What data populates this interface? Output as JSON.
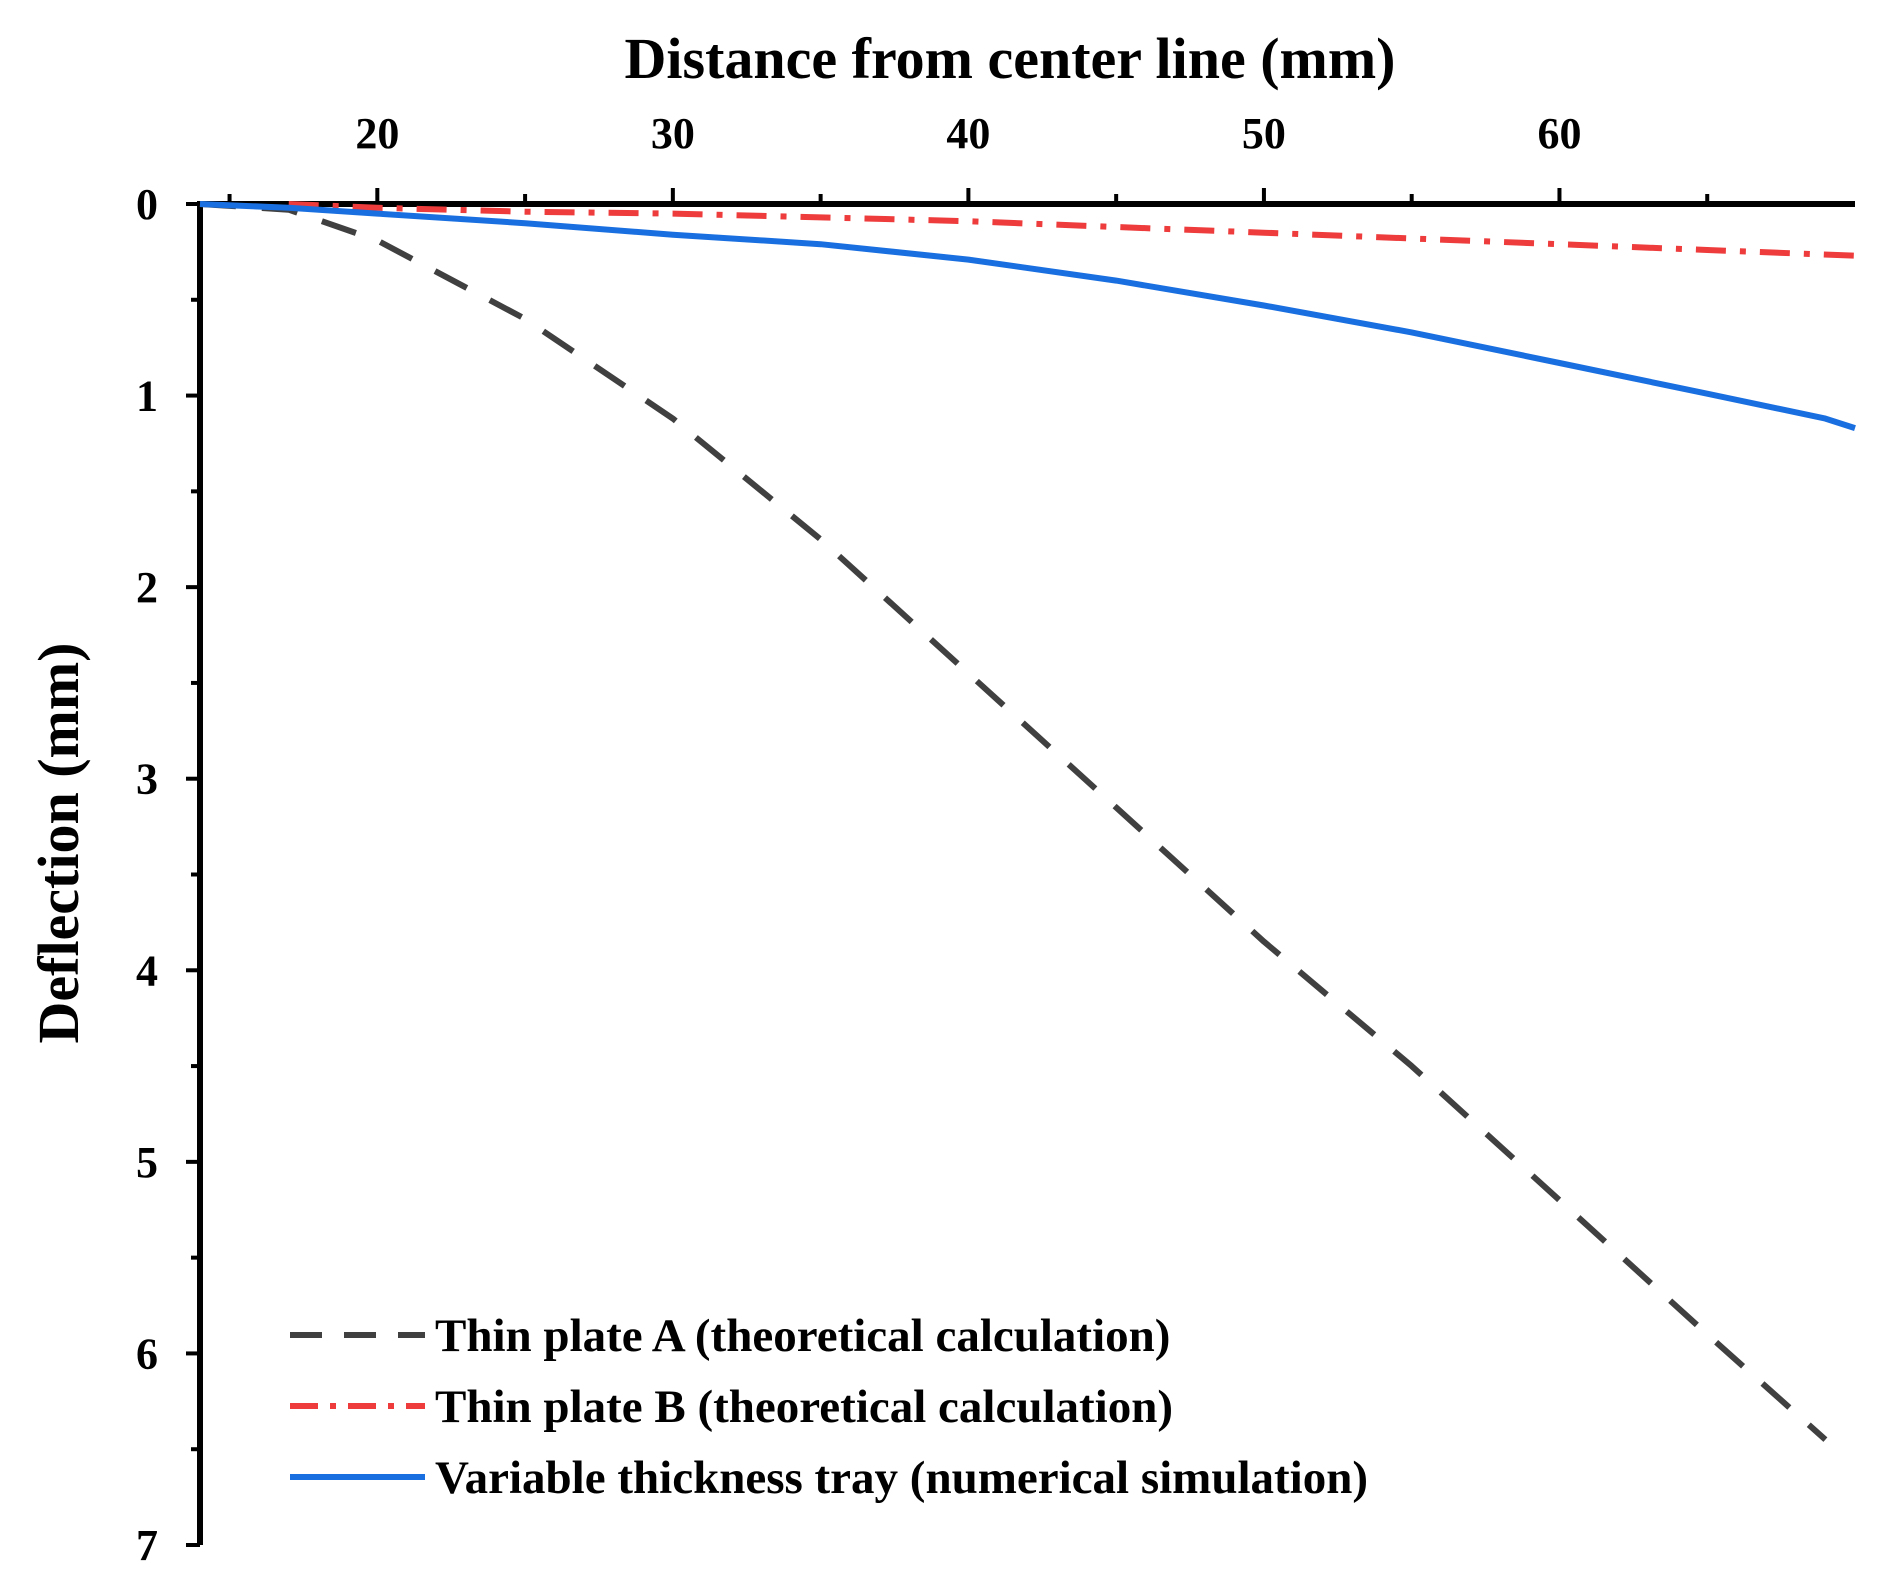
{
  "chart_data": {
    "type": "line",
    "title": "",
    "xlabel": "Distance from center line (mm)",
    "ylabel": "Deflection (mm)",
    "x_axis_position": "top",
    "y_axis_inverted": true,
    "xlim": [
      14,
      70
    ],
    "ylim": [
      0,
      7
    ],
    "x_ticks": [
      20,
      30,
      40,
      50,
      60
    ],
    "x_tick_labels": [
      "20",
      "30",
      "40",
      "50",
      "60"
    ],
    "y_ticks": [
      0,
      1,
      2,
      3,
      4,
      5,
      6,
      7
    ],
    "y_tick_labels": [
      "0",
      "1",
      "2",
      "3",
      "4",
      "5",
      "6",
      "7"
    ],
    "grid": false,
    "legend_position": "bottom-left",
    "series": [
      {
        "name": "Thin plate A (theoretical calculation)",
        "style": "dashed",
        "color": "#404040",
        "x": [
          14,
          17,
          20,
          25,
          30,
          35,
          40,
          45,
          50,
          55,
          60,
          65,
          69
        ],
        "y": [
          0,
          0.03,
          0.19,
          0.6,
          1.12,
          1.75,
          2.45,
          3.15,
          3.85,
          4.5,
          5.2,
          5.9,
          6.45
        ]
      },
      {
        "name": "Thin plate B (theoretical calculation)",
        "style": "dash-dot",
        "color": "#ee3b3b",
        "x": [
          17,
          20,
          25,
          30,
          35,
          40,
          45,
          50,
          55,
          60,
          65,
          70
        ],
        "y": [
          0.0,
          0.02,
          0.04,
          0.05,
          0.07,
          0.09,
          0.12,
          0.15,
          0.18,
          0.21,
          0.24,
          0.27
        ]
      },
      {
        "name": "Variable thickness tray (numerical simulation)",
        "style": "solid",
        "color": "#1a6fe0",
        "x": [
          14,
          17,
          20,
          25,
          30,
          35,
          40,
          45,
          50,
          55,
          60,
          65,
          69,
          70
        ],
        "y": [
          0,
          0.02,
          0.05,
          0.1,
          0.16,
          0.21,
          0.29,
          0.4,
          0.53,
          0.67,
          0.83,
          0.99,
          1.12,
          1.17
        ]
      }
    ]
  }
}
